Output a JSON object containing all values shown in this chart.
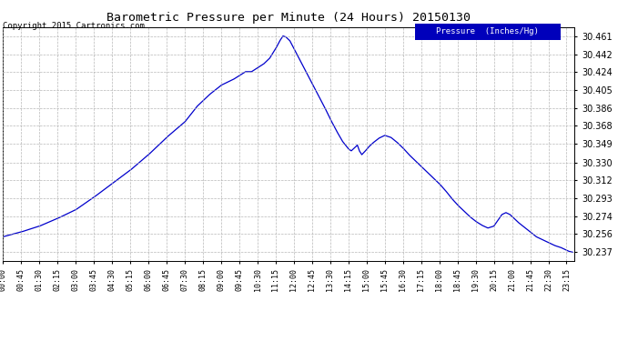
{
  "title": "Barometric Pressure per Minute (24 Hours) 20150130",
  "copyright": "Copyright 2015 Cartronics.com",
  "legend_label": "Pressure  (Inches/Hg)",
  "line_color": "#0000cc",
  "background_color": "#ffffff",
  "grid_color": "#b0b0b0",
  "yticks": [
    30.237,
    30.256,
    30.274,
    30.293,
    30.312,
    30.33,
    30.349,
    30.368,
    30.386,
    30.405,
    30.424,
    30.442,
    30.461
  ],
  "ymin": 30.228,
  "ymax": 30.47,
  "x_tick_labels": [
    "00:00",
    "00:45",
    "01:30",
    "02:15",
    "03:00",
    "03:45",
    "04:30",
    "05:15",
    "06:00",
    "06:45",
    "07:30",
    "08:15",
    "09:00",
    "09:45",
    "10:30",
    "11:15",
    "12:00",
    "12:45",
    "13:30",
    "14:15",
    "15:00",
    "15:45",
    "16:30",
    "17:15",
    "18:00",
    "18:45",
    "19:30",
    "20:15",
    "21:00",
    "21:45",
    "22:30",
    "23:15"
  ],
  "keypoints": [
    [
      0,
      30.253
    ],
    [
      45,
      30.258
    ],
    [
      90,
      30.264
    ],
    [
      135,
      30.272
    ],
    [
      180,
      30.281
    ],
    [
      225,
      30.294
    ],
    [
      270,
      30.308
    ],
    [
      315,
      30.322
    ],
    [
      360,
      30.338
    ],
    [
      405,
      30.356
    ],
    [
      450,
      30.372
    ],
    [
      480,
      30.388
    ],
    [
      510,
      30.4
    ],
    [
      540,
      30.41
    ],
    [
      570,
      30.416
    ],
    [
      585,
      30.42
    ],
    [
      600,
      30.424
    ],
    [
      615,
      30.424
    ],
    [
      630,
      30.428
    ],
    [
      645,
      30.432
    ],
    [
      660,
      30.438
    ],
    [
      675,
      30.448
    ],
    [
      685,
      30.456
    ],
    [
      693,
      30.461
    ],
    [
      700,
      30.46
    ],
    [
      710,
      30.456
    ],
    [
      720,
      30.448
    ],
    [
      730,
      30.44
    ],
    [
      740,
      30.432
    ],
    [
      750,
      30.424
    ],
    [
      765,
      30.412
    ],
    [
      780,
      30.4
    ],
    [
      795,
      30.388
    ],
    [
      810,
      30.375
    ],
    [
      825,
      30.363
    ],
    [
      840,
      30.352
    ],
    [
      855,
      30.344
    ],
    [
      862,
      30.342
    ],
    [
      870,
      30.345
    ],
    [
      877,
      30.348
    ],
    [
      882,
      30.342
    ],
    [
      888,
      30.338
    ],
    [
      895,
      30.341
    ],
    [
      905,
      30.346
    ],
    [
      915,
      30.35
    ],
    [
      930,
      30.355
    ],
    [
      945,
      30.358
    ],
    [
      960,
      30.356
    ],
    [
      975,
      30.351
    ],
    [
      990,
      30.345
    ],
    [
      1005,
      30.338
    ],
    [
      1020,
      30.332
    ],
    [
      1035,
      30.326
    ],
    [
      1050,
      30.32
    ],
    [
      1065,
      30.314
    ],
    [
      1080,
      30.308
    ],
    [
      1095,
      30.301
    ],
    [
      1110,
      30.293
    ],
    [
      1125,
      30.286
    ],
    [
      1140,
      30.28
    ],
    [
      1155,
      30.274
    ],
    [
      1170,
      30.269
    ],
    [
      1185,
      30.265
    ],
    [
      1200,
      30.262
    ],
    [
      1215,
      30.264
    ],
    [
      1225,
      30.27
    ],
    [
      1235,
      30.276
    ],
    [
      1245,
      30.278
    ],
    [
      1255,
      30.276
    ],
    [
      1265,
      30.272
    ],
    [
      1275,
      30.268
    ],
    [
      1290,
      30.263
    ],
    [
      1305,
      30.258
    ],
    [
      1320,
      30.253
    ],
    [
      1335,
      30.25
    ],
    [
      1350,
      30.247
    ],
    [
      1365,
      30.244
    ],
    [
      1380,
      30.242
    ],
    [
      1390,
      30.24
    ],
    [
      1400,
      30.238
    ],
    [
      1410,
      30.237
    ]
  ]
}
